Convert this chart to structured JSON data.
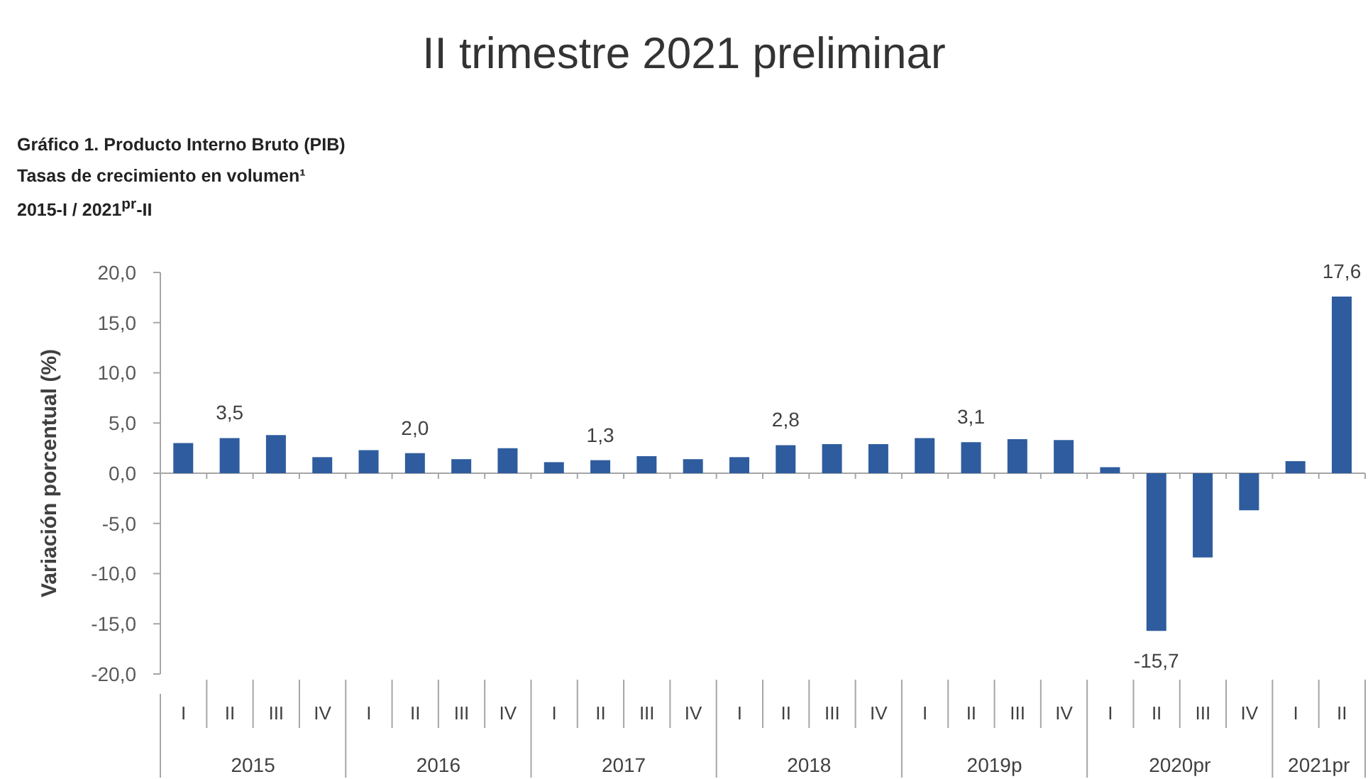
{
  "chart_data": {
    "type": "bar",
    "title": "II trimestre 2021 preliminar",
    "subtitle": "Gráfico 1. Producto Interno Bruto (PIB)\nTasas de crecimiento en volumen¹\n2015-I / 2021$^{pr}$-II",
    "ylabel": "Variación porcentual (%)",
    "categories": [
      "I",
      "II",
      "III",
      "IV",
      "I",
      "II",
      "III",
      "IV",
      "I",
      "II",
      "III",
      "IV",
      "I",
      "II",
      "III",
      "IV",
      "I",
      "II",
      "III",
      "IV",
      "I",
      "II",
      "III",
      "IV",
      "I",
      "II"
    ],
    "values": [
      3.0,
      3.5,
      3.8,
      1.6,
      2.3,
      2.0,
      1.4,
      2.5,
      1.1,
      1.3,
      1.7,
      1.4,
      1.6,
      2.8,
      2.9,
      2.9,
      3.5,
      3.1,
      3.4,
      3.3,
      0.6,
      -15.7,
      -8.4,
      -3.7,
      1.2,
      17.6
    ],
    "color": "#2e5c9e",
    "value_labels": [
      null,
      "3,5",
      null,
      null,
      null,
      "2,0",
      null,
      null,
      null,
      "1,3",
      null,
      null,
      null,
      "2,8",
      null,
      null,
      null,
      "3,1",
      null,
      null,
      null,
      "-15,7",
      null,
      null,
      null,
      "17,6"
    ],
    "ylim": [
      -20,
      20
    ],
    "yticks": [
      {
        "value": -20,
        "label": "-20,0"
      },
      {
        "value": -15,
        "label": "-15,0"
      },
      {
        "value": -10,
        "label": "-10,0"
      },
      {
        "value": -5,
        "label": "-5,0"
      },
      {
        "value": 0,
        "label": "0,0"
      },
      {
        "value": 5,
        "label": "5,0"
      },
      {
        "value": 10,
        "label": "10,0"
      },
      {
        "value": 15,
        "label": "15,0"
      },
      {
        "value": 20,
        "label": "20,0"
      }
    ],
    "annotations": [
      "2015",
      "2016",
      "2017",
      "2018",
      "2019p",
      "2020pr",
      "2021pr"
    ]
  }
}
